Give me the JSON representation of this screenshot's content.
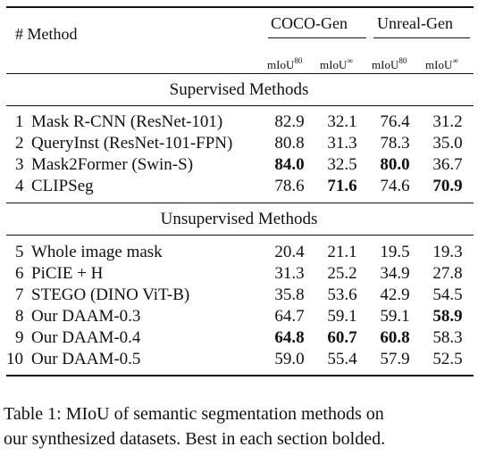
{
  "table": {
    "header": {
      "method_col": "# Method",
      "group1": "COCO-Gen",
      "group2": "Unreal-Gen",
      "sub_base": "mIoU",
      "sub_sup1": "80",
      "sub_sup2": "∞"
    },
    "sections": [
      {
        "title": "Supervised Methods",
        "rows": [
          {
            "idx": "1",
            "method": "Mask R-CNN (ResNet-101)",
            "vals": [
              "82.9",
              "32.1",
              "76.4",
              "31.2"
            ],
            "bold": [
              false,
              false,
              false,
              false
            ]
          },
          {
            "idx": "2",
            "method": "QueryInst (ResNet-101-FPN)",
            "vals": [
              "80.8",
              "31.3",
              "78.3",
              "35.0"
            ],
            "bold": [
              false,
              false,
              false,
              false
            ]
          },
          {
            "idx": "3",
            "method": "Mask2Former (Swin-S)",
            "vals": [
              "84.0",
              "32.5",
              "80.0",
              "36.7"
            ],
            "bold": [
              true,
              false,
              true,
              false
            ]
          },
          {
            "idx": "4",
            "method": "CLIPSeg",
            "vals": [
              "78.6",
              "71.6",
              "74.6",
              "70.9"
            ],
            "bold": [
              false,
              true,
              false,
              true
            ]
          }
        ]
      },
      {
        "title": "Unsupervised Methods",
        "rows": [
          {
            "idx": "5",
            "method": "Whole image mask",
            "vals": [
              "20.4",
              "21.1",
              "19.5",
              "19.3"
            ],
            "bold": [
              false,
              false,
              false,
              false
            ]
          },
          {
            "idx": "6",
            "method": "PiCIE + H",
            "vals": [
              "31.3",
              "25.2",
              "34.9",
              "27.8"
            ],
            "bold": [
              false,
              false,
              false,
              false
            ]
          },
          {
            "idx": "7",
            "method": "STEGO (DINO ViT-B)",
            "vals": [
              "35.8",
              "53.6",
              "42.9",
              "54.5"
            ],
            "bold": [
              false,
              false,
              false,
              false
            ]
          },
          {
            "idx": "8",
            "method": "Our DAAM-0.3",
            "vals": [
              "64.7",
              "59.1",
              "59.1",
              "58.9"
            ],
            "bold": [
              false,
              false,
              false,
              true
            ]
          },
          {
            "idx": "9",
            "method": "Our DAAM-0.4",
            "vals": [
              "64.8",
              "60.7",
              "60.8",
              "58.3"
            ],
            "bold": [
              true,
              true,
              true,
              false
            ]
          },
          {
            "idx": "10",
            "method": "Our DAAM-0.5",
            "vals": [
              "59.0",
              "55.4",
              "57.9",
              "52.5"
            ],
            "bold": [
              false,
              false,
              false,
              false
            ]
          }
        ]
      }
    ]
  },
  "caption": {
    "line1": "Table 1: MIoU of semantic segmentation methods on",
    "line2": "our synthesized datasets. Best in each section bolded."
  }
}
